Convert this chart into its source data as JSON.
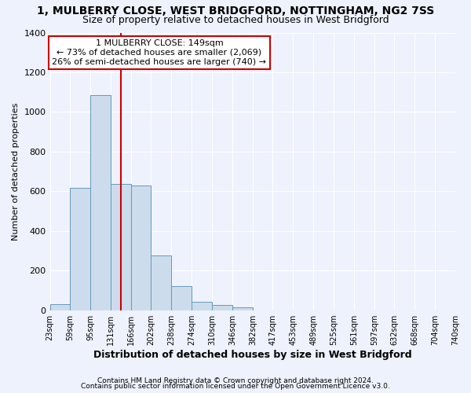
{
  "title_line1": "1, MULBERRY CLOSE, WEST BRIDGFORD, NOTTINGHAM, NG2 7SS",
  "title_line2": "Size of property relative to detached houses in West Bridgford",
  "xlabel": "Distribution of detached houses by size in West Bridgford",
  "ylabel": "Number of detached properties",
  "footer_line1": "Contains HM Land Registry data © Crown copyright and database right 2024.",
  "footer_line2": "Contains public sector information licensed under the Open Government Licence v3.0.",
  "annotation_line1": "1 MULBERRY CLOSE: 149sqm",
  "annotation_line2": "← 73% of detached houses are smaller (2,069)",
  "annotation_line3": "26% of semi-detached houses are larger (740) →",
  "bin_edges": [
    23,
    59,
    95,
    131,
    166,
    202,
    238,
    274,
    310,
    346,
    382,
    417,
    453,
    489,
    525,
    561,
    597,
    632,
    668,
    704,
    740
  ],
  "bar_heights": [
    30,
    615,
    1085,
    635,
    630,
    275,
    120,
    40,
    25,
    15,
    0,
    0,
    0,
    0,
    0,
    0,
    0,
    0,
    0,
    0
  ],
  "bar_color": "#ccdcec",
  "bar_edge_color": "#6699bb",
  "red_line_x": 149,
  "ylim": [
    0,
    1400
  ],
  "yticks": [
    0,
    200,
    400,
    600,
    800,
    1000,
    1200,
    1400
  ],
  "background_color": "#eef2fc",
  "grid_color": "#ffffff",
  "annotation_box_facecolor": "#ffffff",
  "annotation_box_edgecolor": "#cc0000",
  "red_line_color": "#cc0000",
  "title1_fontsize": 10,
  "title2_fontsize": 9,
  "ylabel_fontsize": 8,
  "xlabel_fontsize": 9,
  "ytick_fontsize": 8,
  "xtick_fontsize": 7,
  "annotation_fontsize": 8,
  "footer_fontsize": 6.5
}
